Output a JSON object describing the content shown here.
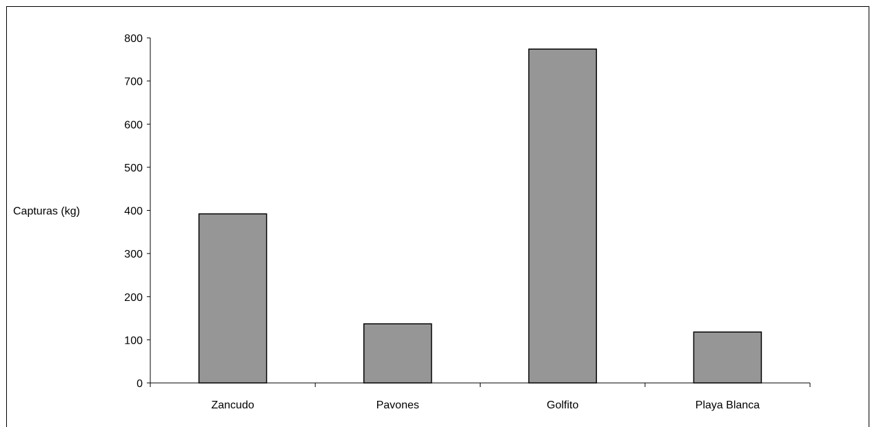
{
  "chart_data": {
    "type": "bar",
    "title": "",
    "xlabel": "",
    "ylabel": "Capturas (kg)",
    "categories": [
      "Zancudo",
      "Pavones",
      "Golfito",
      "Playa Blanca"
    ],
    "values": [
      392,
      137,
      774,
      118
    ],
    "ylim": [
      0,
      800
    ],
    "yticks": [
      0,
      100,
      200,
      300,
      400,
      500,
      600,
      700,
      800
    ],
    "grid": false,
    "legend": "none",
    "bar_color": "#969696",
    "bar_edge_color": "#000000"
  }
}
